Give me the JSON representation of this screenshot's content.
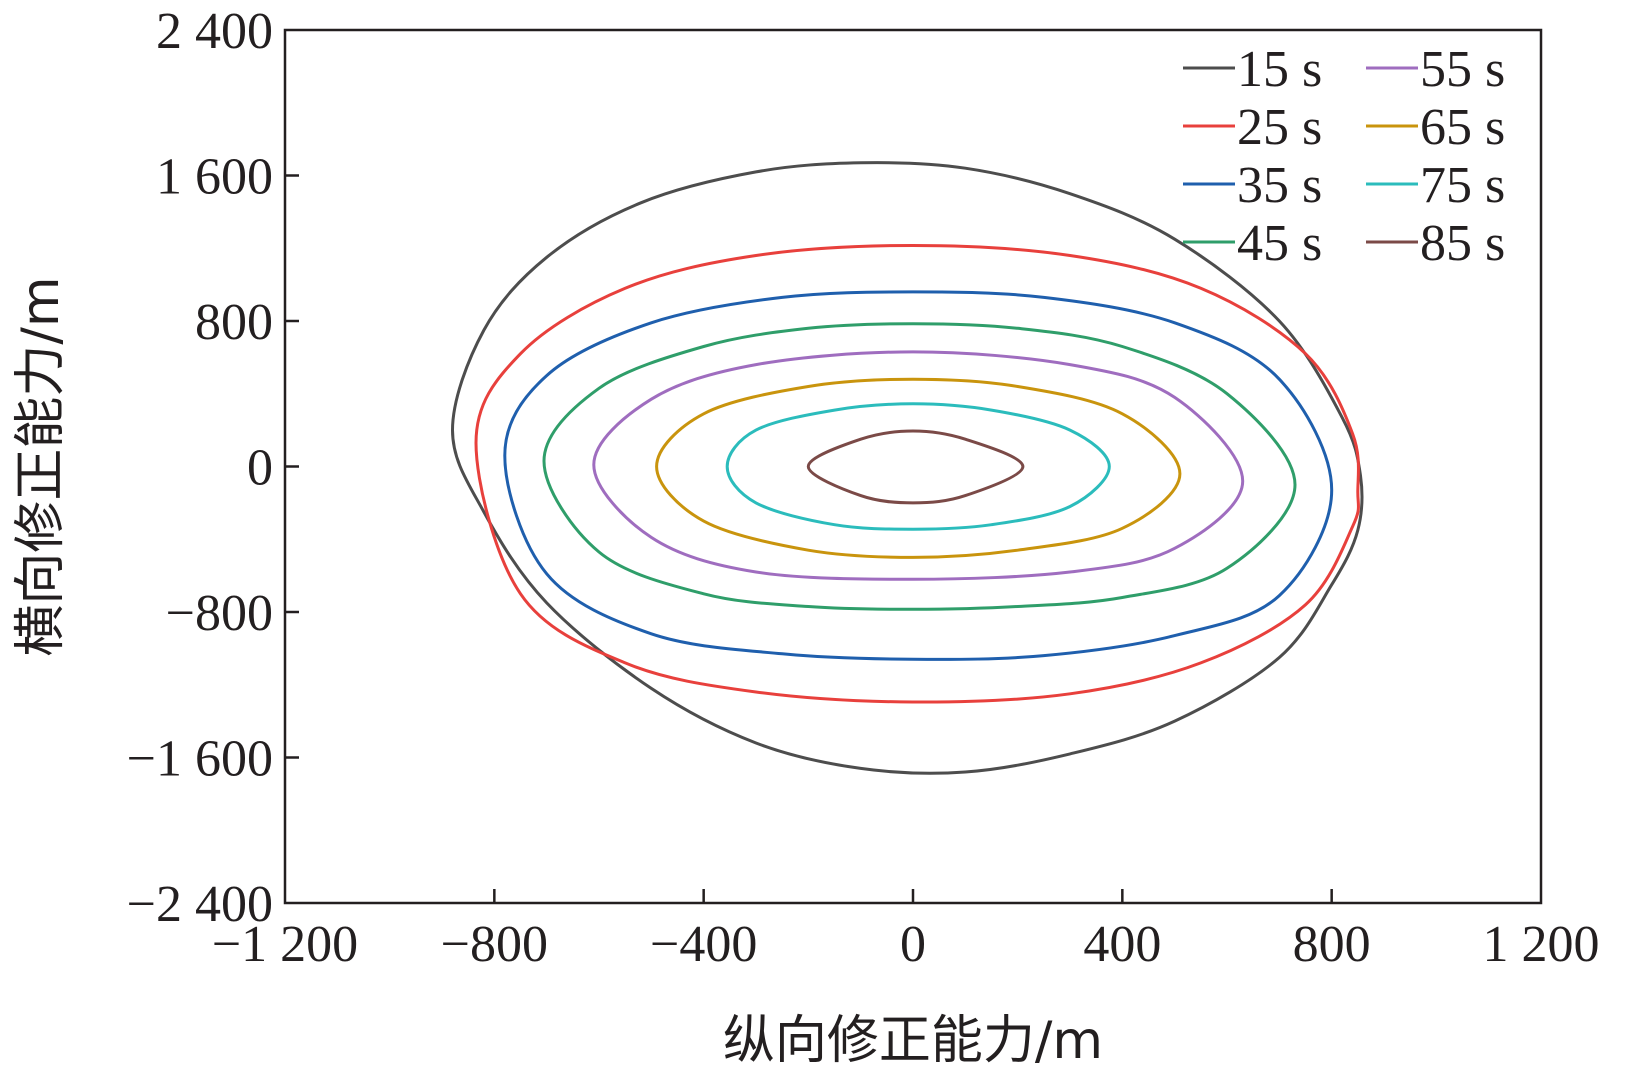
{
  "chart_data": {
    "type": "line",
    "xlabel": "纵向修正能力/m",
    "ylabel": "横向修正能力/m",
    "xlim": [
      -1200,
      1200
    ],
    "ylim": [
      -2400,
      2400
    ],
    "xticks": [
      -1200,
      -800,
      -400,
      0,
      400,
      800,
      1200
    ],
    "xtick_labels": [
      "−1 200",
      "−800",
      "−400",
      "0",
      "400",
      "800",
      "1 200"
    ],
    "yticks": [
      -2400,
      -1600,
      -800,
      0,
      800,
      1600,
      2400
    ],
    "ytick_labels": [
      "−2 400",
      "−1 600",
      "−800",
      "0",
      "800",
      "1 600",
      "2 400"
    ],
    "grid": false,
    "legend_position": "top-right",
    "series": [
      {
        "name": "15 s",
        "color": "#4d4d4d",
        "x": [
          -880,
          -820,
          -700,
          -520,
          -300,
          -100,
          100,
          300,
          500,
          700,
          820,
          855,
          850,
          800,
          700,
          500,
          300,
          100,
          -100,
          -300,
          -500,
          -700,
          -820,
          -880
        ],
        "y": [
          200,
          750,
          1150,
          1450,
          1620,
          1670,
          1640,
          1500,
          1250,
          800,
          270,
          -50,
          -350,
          -650,
          -1050,
          -1400,
          -1580,
          -1680,
          -1660,
          -1520,
          -1220,
          -750,
          -250,
          200
        ]
      },
      {
        "name": "25 s",
        "color": "#e8403c",
        "x": [
          -835,
          -750,
          -550,
          -300,
          0,
          300,
          550,
          750,
          840,
          850,
          840,
          750,
          550,
          300,
          0,
          -300,
          -550,
          -750,
          -835
        ],
        "y": [
          130,
          620,
          980,
          1160,
          1215,
          1160,
          980,
          620,
          180,
          -140,
          -330,
          -760,
          -1080,
          -1250,
          -1295,
          -1240,
          -1080,
          -700,
          130
        ]
      },
      {
        "name": "35 s",
        "color": "#1f5fad",
        "x": [
          -780,
          -700,
          -500,
          -250,
          0,
          250,
          500,
          700,
          800,
          700,
          500,
          250,
          0,
          -250,
          -500,
          -700,
          -780
        ],
        "y": [
          60,
          500,
          790,
          930,
          960,
          930,
          790,
          480,
          -130,
          -710,
          -930,
          -1040,
          -1060,
          -1030,
          -920,
          -590,
          60
        ]
      },
      {
        "name": "45 s",
        "color": "#2f9e6a",
        "x": [
          -705,
          -600,
          -400,
          -200,
          0,
          200,
          400,
          600,
          730,
          600,
          400,
          200,
          0,
          -200,
          -400,
          -600,
          -705
        ],
        "y": [
          30,
          430,
          660,
          760,
          785,
          760,
          660,
          400,
          -100,
          -560,
          -720,
          -770,
          -785,
          -770,
          -700,
          -470,
          30
        ]
      },
      {
        "name": "55 s",
        "color": "#9f6dbf",
        "x": [
          -610,
          -500,
          -300,
          0,
          300,
          500,
          630,
          500,
          300,
          0,
          -300,
          -500,
          -610
        ],
        "y": [
          10,
          370,
          560,
          630,
          560,
          380,
          -80,
          -450,
          -580,
          -620,
          -580,
          -390,
          10
        ]
      },
      {
        "name": "65 s",
        "color": "#c9940d",
        "x": [
          -490,
          -400,
          -200,
          0,
          200,
          400,
          510,
          400,
          200,
          0,
          -200,
          -400,
          -490
        ],
        "y": [
          0,
          290,
          440,
          480,
          440,
          290,
          -40,
          -340,
          -460,
          -500,
          -460,
          -300,
          0
        ]
      },
      {
        "name": "75 s",
        "color": "#2bbcbc",
        "x": [
          -355,
          -300,
          -150,
          0,
          150,
          300,
          375,
          300,
          150,
          0,
          -150,
          -300,
          -355
        ],
        "y": [
          0,
          200,
          310,
          345,
          310,
          200,
          0,
          -220,
          -320,
          -345,
          -320,
          -200,
          0
        ]
      },
      {
        "name": "85 s",
        "color": "#7b4a47",
        "x": [
          -200,
          -100,
          0,
          100,
          210,
          100,
          0,
          -100,
          -200
        ],
        "y": [
          0,
          150,
          195,
          150,
          0,
          -160,
          -200,
          -160,
          0
        ]
      }
    ]
  }
}
